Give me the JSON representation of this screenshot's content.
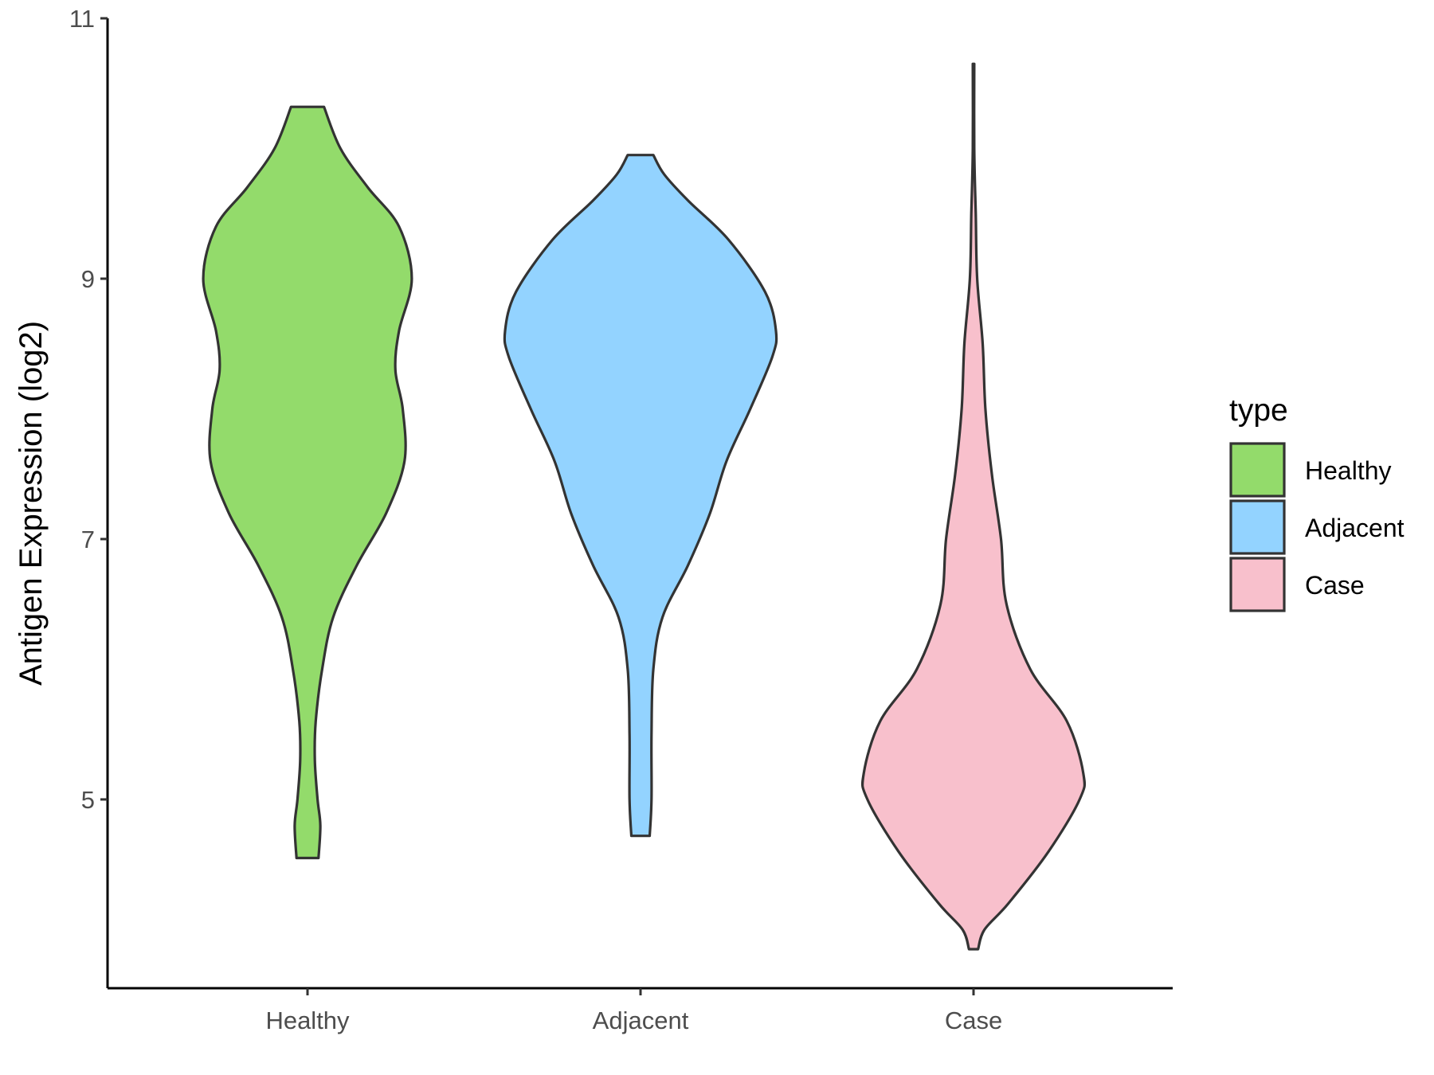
{
  "chart_data": {
    "type": "violin",
    "title": "",
    "xlabel": "",
    "ylabel": "Antigen Expression (log2)",
    "categories": [
      "Healthy",
      "Adjacent",
      "Case"
    ],
    "ylim": [
      3.55,
      11.0
    ],
    "yticks": [
      5,
      7,
      9,
      11
    ],
    "yticklabels": [
      "5",
      "7",
      "9",
      "11"
    ],
    "grid": false,
    "legend": {
      "title": "type",
      "placement": "right",
      "entries": [
        "Healthy",
        "Adjacent",
        "Case"
      ]
    },
    "series": [
      {
        "name": "Healthy",
        "color": "#93DB6B",
        "min": 4.55,
        "max": 10.32,
        "density": [
          [
            4.55,
            0.06
          ],
          [
            4.8,
            0.07
          ],
          [
            5.0,
            0.055
          ],
          [
            5.3,
            0.04
          ],
          [
            5.6,
            0.045
          ],
          [
            6.0,
            0.08
          ],
          [
            6.4,
            0.14
          ],
          [
            6.8,
            0.27
          ],
          [
            7.2,
            0.43
          ],
          [
            7.6,
            0.53
          ],
          [
            8.0,
            0.52
          ],
          [
            8.3,
            0.48
          ],
          [
            8.6,
            0.5
          ],
          [
            9.0,
            0.57
          ],
          [
            9.4,
            0.5
          ],
          [
            9.7,
            0.33
          ],
          [
            10.0,
            0.18
          ],
          [
            10.32,
            0.09
          ]
        ]
      },
      {
        "name": "Adjacent",
        "color": "#93D3FF",
        "min": 4.72,
        "max": 9.95,
        "density": [
          [
            4.72,
            0.05
          ],
          [
            5.0,
            0.06
          ],
          [
            5.5,
            0.06
          ],
          [
            6.0,
            0.07
          ],
          [
            6.4,
            0.12
          ],
          [
            6.8,
            0.26
          ],
          [
            7.2,
            0.38
          ],
          [
            7.6,
            0.47
          ],
          [
            8.0,
            0.6
          ],
          [
            8.4,
            0.72
          ],
          [
            8.6,
            0.74
          ],
          [
            8.9,
            0.68
          ],
          [
            9.3,
            0.48
          ],
          [
            9.6,
            0.26
          ],
          [
            9.8,
            0.13
          ],
          [
            9.95,
            0.07
          ]
        ]
      },
      {
        "name": "Case",
        "color": "#F8C0CC",
        "min": 3.85,
        "max": 10.65,
        "density": [
          [
            3.85,
            0.025
          ],
          [
            4.0,
            0.06
          ],
          [
            4.2,
            0.19
          ],
          [
            4.6,
            0.41
          ],
          [
            5.0,
            0.58
          ],
          [
            5.2,
            0.6
          ],
          [
            5.6,
            0.51
          ],
          [
            6.0,
            0.31
          ],
          [
            6.5,
            0.18
          ],
          [
            7.0,
            0.15
          ],
          [
            7.5,
            0.1
          ],
          [
            8.0,
            0.065
          ],
          [
            8.5,
            0.05
          ],
          [
            9.0,
            0.02
          ],
          [
            9.5,
            0.012
          ],
          [
            10.0,
            0.004
          ],
          [
            10.65,
            0.004
          ]
        ]
      }
    ]
  }
}
